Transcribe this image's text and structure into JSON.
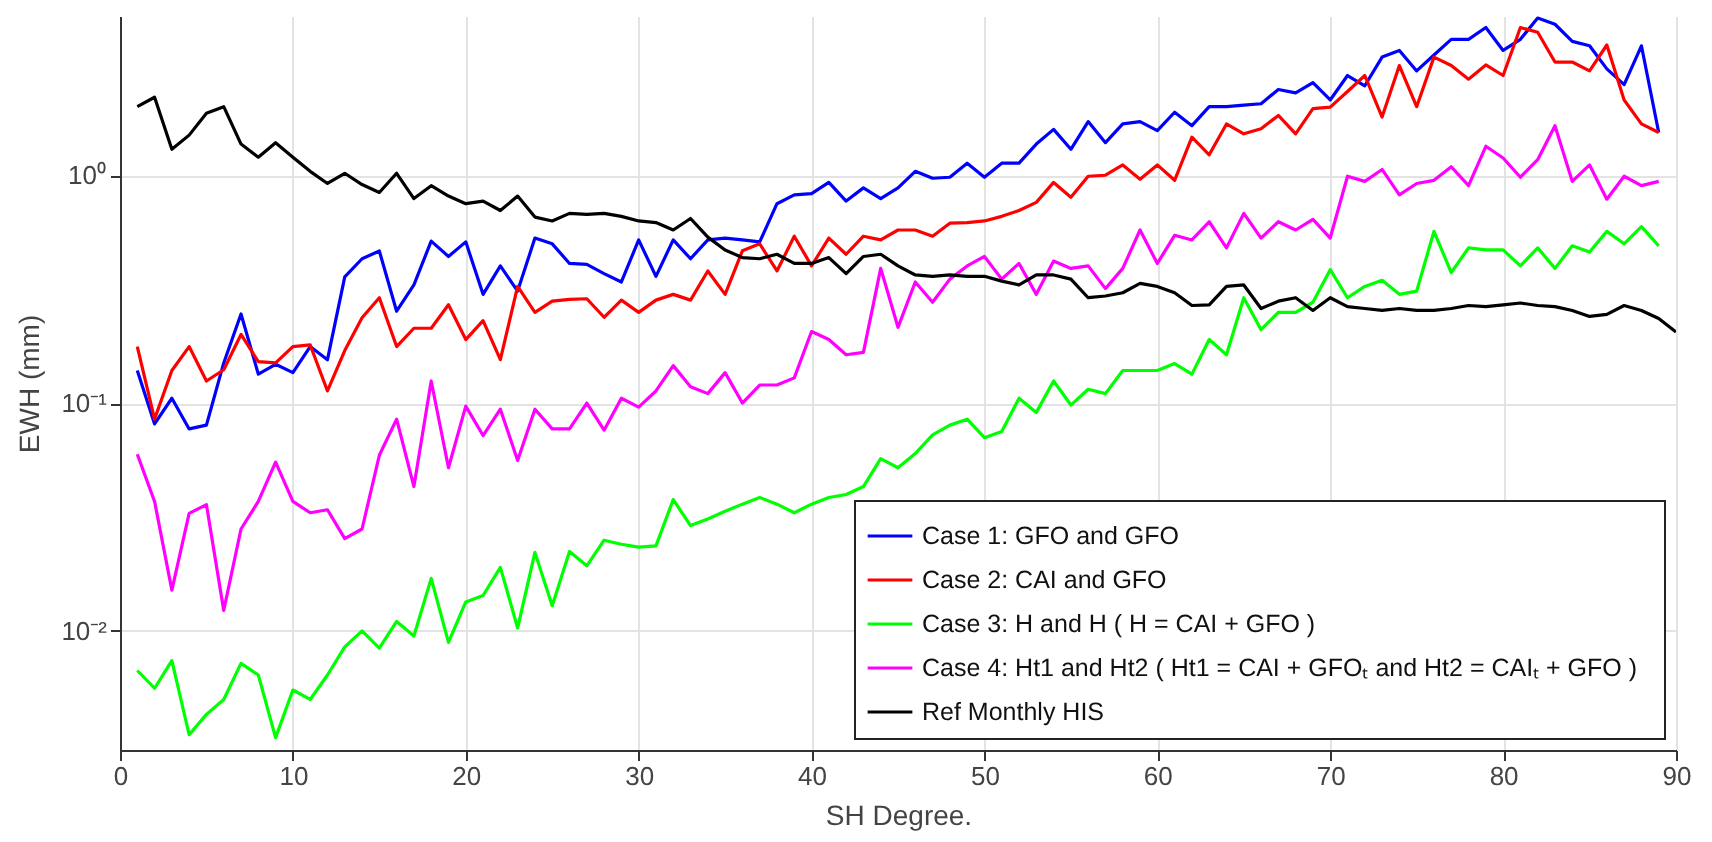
{
  "chart_data": {
    "type": "line",
    "xlabel": "SH Degree.",
    "ylabel": "EWH (mm)",
    "x": [
      1,
      2,
      3,
      4,
      5,
      6,
      7,
      8,
      9,
      10,
      11,
      12,
      13,
      14,
      15,
      16,
      17,
      18,
      19,
      20,
      21,
      22,
      23,
      24,
      25,
      26,
      27,
      28,
      29,
      30,
      31,
      32,
      33,
      34,
      35,
      36,
      37,
      38,
      39,
      40,
      41,
      42,
      43,
      44,
      45,
      46,
      47,
      48,
      49,
      50,
      51,
      52,
      53,
      54,
      55,
      56,
      57,
      58,
      59,
      60,
      61,
      62,
      63,
      64,
      65,
      66,
      67,
      68,
      69,
      70,
      71,
      72,
      73,
      74,
      75,
      76,
      77,
      78,
      79,
      80,
      81,
      82,
      83,
      84,
      85,
      86,
      87,
      88,
      89,
      90
    ],
    "xlim": [
      0,
      90
    ],
    "xticks": [
      0,
      10,
      20,
      30,
      40,
      50,
      60,
      70,
      80,
      90
    ],
    "ylim": [
      0.003,
      5
    ],
    "yticks": [
      {
        "value": 0.01,
        "label": "10⁻²"
      },
      {
        "value": 0.1,
        "label": "10⁻¹"
      },
      {
        "value": 1,
        "label": "10⁰"
      }
    ],
    "log": true,
    "grid": true,
    "legend": "bottom right",
    "series": [
      {
        "name": "Case 1: GFO and GFO",
        "color": "#0000ff",
        "values": [
          0.139,
          0.081,
          0.105,
          0.077,
          0.08,
          0.15,
          0.246,
          0.134,
          0.148,
          0.136,
          0.177,
          0.155,
          0.358,
          0.43,
          0.465,
          0.253,
          0.33,
          0.514,
          0.44,
          0.51,
          0.3,
          0.4,
          0.31,
          0.53,
          0.5,
          0.41,
          0.406,
          0.37,
          0.34,
          0.52,
          0.36,
          0.52,
          0.43,
          0.52,
          0.53,
          0.52,
          0.51,
          0.75,
          0.82,
          0.83,
          0.93,
          0.77,
          0.88,
          0.79,
          0.88,
          1.04,
          0.97,
          0.98,
          1.13,
          0.98,
          1.13,
          1.13,
          1.37,
          1.59,
          1.3,
          1.72,
          1.39,
          1.68,
          1.72,
          1.57,
          1.89,
          1.65,
          2.0,
          2.0,
          2.03,
          2.06,
          2.38,
          2.3,
          2.55,
          2.14,
          2.74,
          2.47,
          3.3,
          3.53,
          2.87,
          3.37,
          3.95,
          3.95,
          4.45,
          3.53,
          3.95,
          4.9,
          4.6,
          3.87,
          3.7,
          2.93,
          2.5,
          3.7,
          1.54,
          null
        ]
      },
      {
        "name": "Case 2: CAI and GFO",
        "color": "#ff0000",
        "values": [
          0.177,
          0.085,
          0.139,
          0.177,
          0.125,
          0.14,
          0.2,
          0.152,
          0.15,
          0.177,
          0.18,
          0.113,
          0.17,
          0.237,
          0.29,
          0.177,
          0.213,
          0.213,
          0.27,
          0.19,
          0.23,
          0.155,
          0.325,
          0.25,
          0.28,
          0.285,
          0.287,
          0.238,
          0.283,
          0.25,
          0.283,
          0.3,
          0.283,
          0.38,
          0.3,
          0.466,
          0.5,
          0.38,
          0.54,
          0.4,
          0.53,
          0.45,
          0.54,
          0.52,
          0.575,
          0.575,
          0.54,
          0.616,
          0.62,
          0.63,
          0.66,
          0.7,
          0.76,
          0.93,
          0.8,
          0.99,
          1.0,
          1.11,
          0.96,
          1.11,
          0.95,
          1.47,
          1.23,
          1.68,
          1.52,
          1.6,
          1.83,
          1.52,
          1.96,
          1.99,
          2.33,
          2.74,
          1.8,
          3.03,
          2.0,
          3.3,
          3.03,
          2.64,
          3.05,
          2.74,
          4.45,
          4.24,
          3.14,
          3.14,
          2.87,
          3.73,
          2.14,
          1.68,
          1.54,
          null
        ]
      },
      {
        "name": "Case 3: H and H ( H = CAI + GFO )",
        "color": "#00ff00",
        "values": [
          0.0067,
          0.0056,
          0.0074,
          0.0035,
          0.0043,
          0.005,
          0.0072,
          0.0064,
          0.0034,
          0.0055,
          0.005,
          0.0064,
          0.0085,
          0.01,
          0.0084,
          0.011,
          0.0095,
          0.017,
          0.0089,
          0.0134,
          0.0143,
          0.019,
          0.0103,
          0.0221,
          0.0129,
          0.0223,
          0.0193,
          0.025,
          0.024,
          0.0233,
          0.0236,
          0.0377,
          0.029,
          0.031,
          0.0335,
          0.036,
          0.0385,
          0.036,
          0.033,
          0.036,
          0.0385,
          0.0397,
          0.043,
          0.057,
          0.052,
          0.06,
          0.0725,
          0.08,
          0.085,
          0.0705,
          0.075,
          0.105,
          0.091,
          0.125,
          0.098,
          0.115,
          0.11,
          0.139,
          0.139,
          0.139,
          0.149,
          0.134,
          0.19,
          0.163,
          0.29,
          0.21,
          0.25,
          0.25,
          0.277,
          0.385,
          0.29,
          0.325,
          0.346,
          0.3,
          0.31,
          0.567,
          0.374,
          0.48,
          0.47,
          0.47,
          0.4,
          0.48,
          0.39,
          0.49,
          0.46,
          0.567,
          0.5,
          0.595,
          0.49,
          null
        ]
      },
      {
        "name": "Case 4: Ht1 and Ht2 ( Ht1 = CAI + GFOₜ  and  Ht2 = CAIₜ + GFO )",
        "color": "#ff00ff",
        "values": [
          0.0596,
          0.037,
          0.0151,
          0.0328,
          0.0358,
          0.0123,
          0.028,
          0.037,
          0.055,
          0.037,
          0.033,
          0.034,
          0.0254,
          0.028,
          0.059,
          0.085,
          0.043,
          0.125,
          0.052,
          0.097,
          0.072,
          0.094,
          0.056,
          0.094,
          0.077,
          0.077,
          0.1,
          0.076,
          0.105,
          0.096,
          0.113,
          0.146,
          0.118,
          0.11,
          0.136,
          0.1,
          0.12,
          0.12,
          0.129,
          0.206,
          0.19,
          0.163,
          0.167,
          0.39,
          0.215,
          0.34,
          0.277,
          0.35,
          0.4,
          0.44,
          0.35,
          0.41,
          0.3,
          0.42,
          0.39,
          0.4,
          0.318,
          0.39,
          0.575,
          0.41,
          0.545,
          0.52,
          0.625,
          0.48,
          0.68,
          0.53,
          0.625,
          0.575,
          0.64,
          0.53,
          0.99,
          0.94,
          1.06,
          0.82,
          0.92,
          0.95,
          1.09,
          0.9,
          1.34,
          1.19,
          0.98,
          1.17,
          1.65,
          0.94,
          1.11,
          0.785,
          0.99,
          0.9,
          0.94,
          null
        ]
      },
      {
        "name": "Ref Monthly HIS",
        "color": "#000000",
        "values": [
          2.0,
          2.2,
          1.3,
          1.5,
          1.87,
          2.0,
          1.37,
          1.2,
          1.39,
          1.2,
          1.04,
          0.92,
          1.02,
          0.91,
          0.84,
          1.02,
          0.79,
          0.9,
          0.81,
          0.75,
          0.77,
          0.7,
          0.81,
          0.655,
          0.63,
          0.68,
          0.673,
          0.68,
          0.66,
          0.63,
          0.62,
          0.575,
          0.646,
          0.535,
          0.47,
          0.435,
          0.43,
          0.45,
          0.41,
          0.41,
          0.435,
          0.37,
          0.44,
          0.45,
          0.4,
          0.365,
          0.36,
          0.365,
          0.36,
          0.36,
          0.343,
          0.33,
          0.365,
          0.365,
          0.35,
          0.29,
          0.295,
          0.305,
          0.335,
          0.325,
          0.305,
          0.268,
          0.27,
          0.325,
          0.33,
          0.26,
          0.28,
          0.29,
          0.255,
          0.29,
          0.265,
          0.26,
          0.255,
          0.26,
          0.255,
          0.255,
          0.26,
          0.268,
          0.265,
          0.27,
          0.275,
          0.268,
          0.265,
          0.255,
          0.24,
          0.245,
          0.268,
          0.255,
          0.235,
          0.205
        ]
      }
    ]
  }
}
